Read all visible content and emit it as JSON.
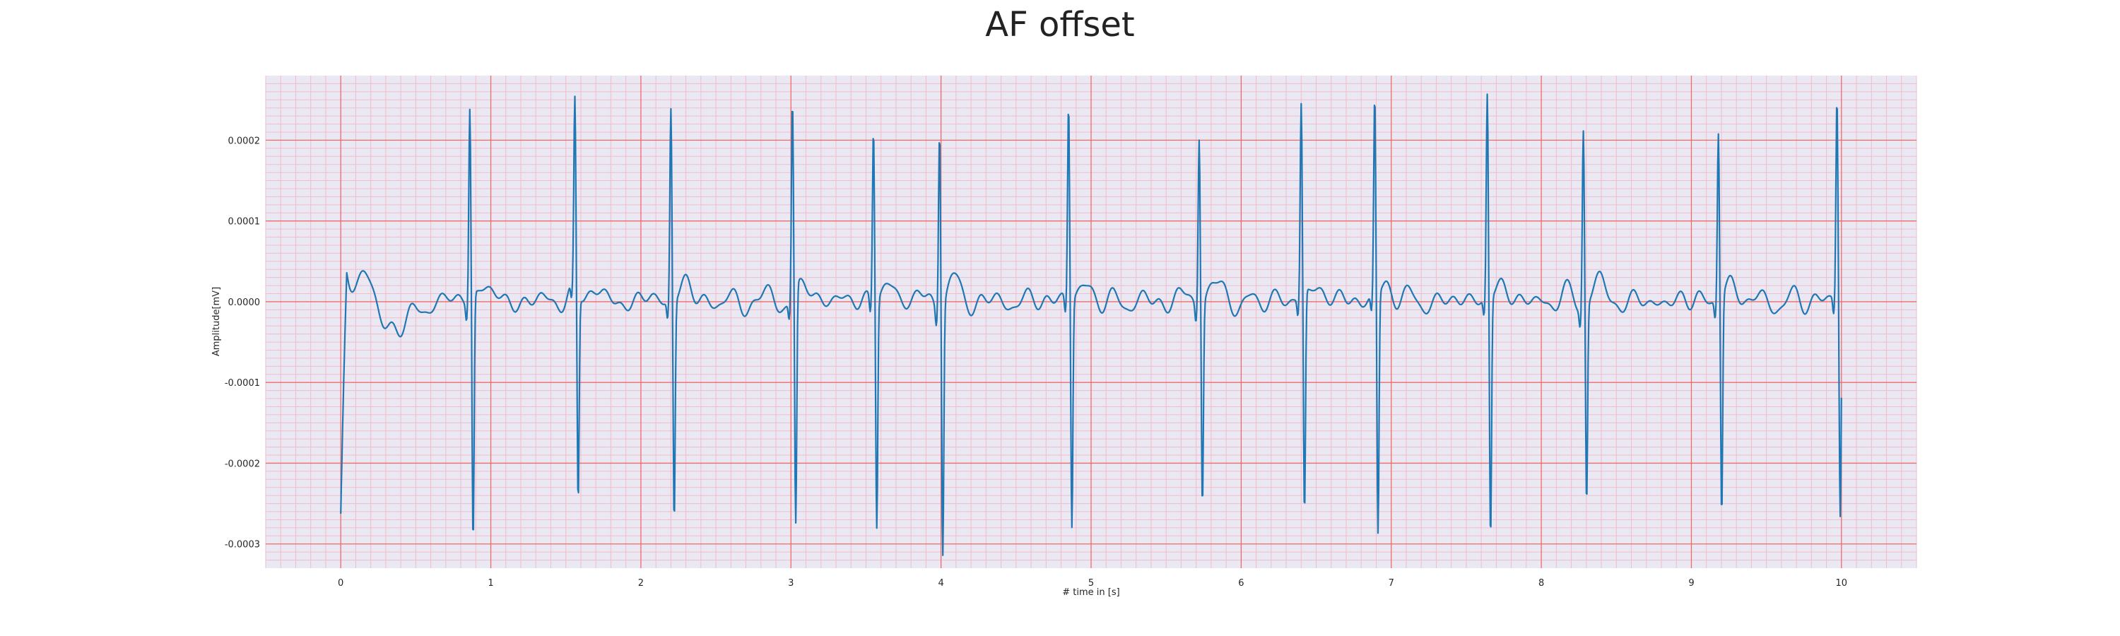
{
  "chart_data": {
    "type": "line",
    "title": "AF offset",
    "xlabel": "# time in [s]",
    "ylabel": "Amplitude[mV]",
    "xlim": [
      -0.5,
      10.5
    ],
    "ylim": [
      -0.00033,
      0.00028
    ],
    "xticks": [
      0,
      1,
      2,
      3,
      4,
      5,
      6,
      7,
      8,
      9,
      10
    ],
    "xtick_labels": [
      "0",
      "1",
      "2",
      "3",
      "4",
      "5",
      "6",
      "7",
      "8",
      "9",
      "10"
    ],
    "yticks": [
      0.0002,
      0.0001,
      0.0,
      -0.0001,
      -0.0002,
      -0.0003
    ],
    "ytick_labels": [
      "0.0002",
      "0.0001",
      "0.0000",
      "-0.0001",
      "-0.0002",
      "-0.0003"
    ],
    "grid": "major and minor",
    "r_peaks_s": [
      0.86,
      1.56,
      2.2,
      3.01,
      3.55,
      3.99,
      4.85,
      5.72,
      6.4,
      6.89,
      7.64,
      8.28,
      9.18,
      9.97
    ],
    "r_amplitudes": [
      0.00024,
      0.000233,
      0.00024,
      0.000243,
      0.000213,
      0.000225,
      0.000243,
      0.000213,
      0.00024,
      0.000245,
      0.000253,
      0.000222,
      0.00021,
      0.000248
    ],
    "s_amplitudes": [
      -0.000305,
      -0.000257,
      -0.000272,
      -0.000292,
      -0.00028,
      -0.000305,
      -0.00028,
      -0.000245,
      -0.000275,
      -0.000298,
      -0.000298,
      -0.000245,
      -0.000268,
      -0.000275
    ],
    "colors": {
      "line": "#1f77b4",
      "plot_background": "#eae8f3",
      "major_grid": "#f06a6a",
      "minor_grid": "#f2bcc8"
    }
  }
}
